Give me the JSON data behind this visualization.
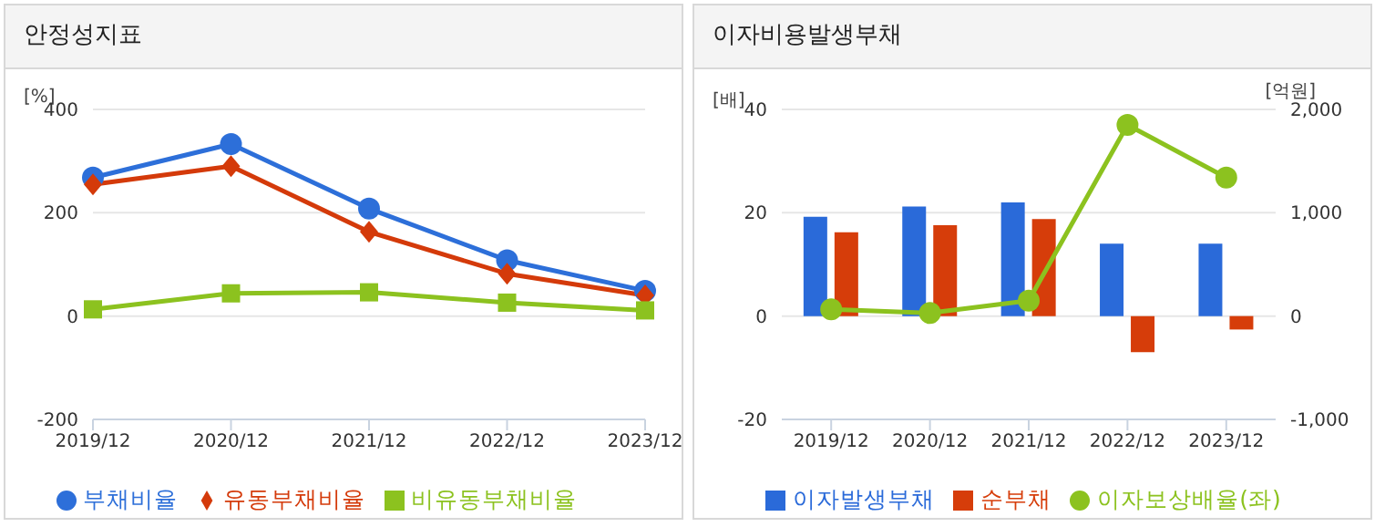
{
  "chart_data": [
    {
      "type": "line",
      "title": "안정성지표",
      "ylabel": "[%]",
      "categories": [
        "2019/12",
        "2020/12",
        "2021/12",
        "2022/12",
        "2023/12"
      ],
      "ylim": [
        -200,
        400
      ],
      "yticks": [
        -200,
        0,
        200,
        400
      ],
      "grid": "y",
      "legend": "bottom",
      "series": [
        {
          "name": "부채비율",
          "color": "#2d6fd9",
          "marker": "circle",
          "values": [
            268,
            333,
            208,
            108,
            49
          ]
        },
        {
          "name": "유동부채비율",
          "color": "#d43a0a",
          "marker": "diamond",
          "values": [
            255,
            290,
            163,
            82,
            40
          ]
        },
        {
          "name": "비유동부채비율",
          "color": "#8cc21f",
          "marker": "square",
          "values": [
            13,
            44,
            46,
            26,
            11
          ]
        }
      ]
    },
    {
      "type": "bar",
      "title": "이자비용발생부채",
      "ylabel": "[배]",
      "y2label": "[억원]",
      "categories": [
        "2019/12",
        "2020/12",
        "2021/12",
        "2022/12",
        "2023/12"
      ],
      "ylim": [
        -20,
        40
      ],
      "yticks": [
        -20,
        0,
        20,
        40
      ],
      "y2lim": [
        -1000,
        2000
      ],
      "y2ticks": [
        {
          "value": -1000,
          "label": "-1,000"
        },
        0,
        {
          "value": 1000,
          "label": "1,000"
        },
        {
          "value": 2000,
          "label": "2,000"
        }
      ],
      "grid": "y",
      "legend": "bottom",
      "series": [
        {
          "name": "이자발생부채",
          "color": "#2a6ad9",
          "axis": "y2",
          "values": [
            960,
            1060,
            1100,
            700,
            700
          ]
        },
        {
          "name": "순부채",
          "color": "#d63d0a",
          "axis": "y2",
          "values": [
            810,
            880,
            940,
            -350,
            -130
          ]
        },
        {
          "name": "이자보상배율(좌)",
          "type": "line",
          "color": "#8cc21f",
          "marker": "circle",
          "values": [
            1.3,
            0.6,
            3.0,
            37,
            26.8
          ]
        }
      ]
    }
  ]
}
